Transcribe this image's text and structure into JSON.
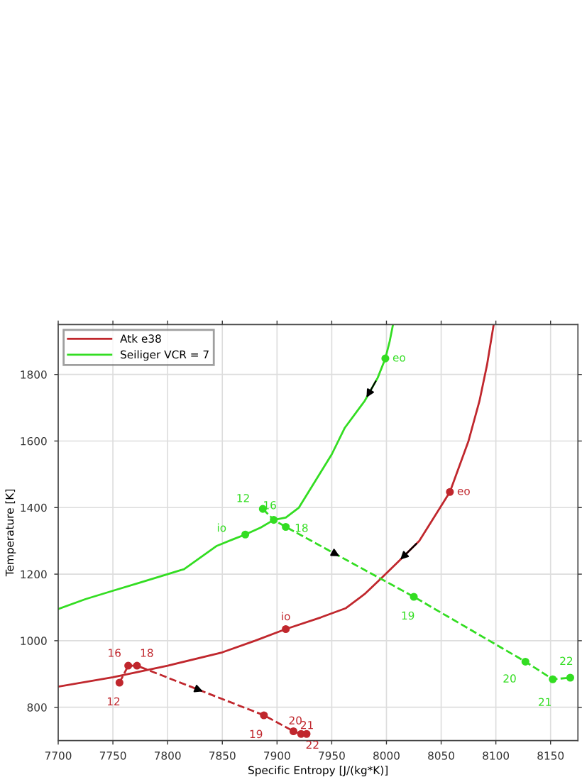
{
  "chart_data": {
    "type": "line",
    "xlabel": "Specific Entropy [J/(kg*K)]",
    "ylabel": "Temperature [K]",
    "xlim": [
      7700,
      8175
    ],
    "ylim": [
      700,
      1950
    ],
    "xticks": [
      7700,
      7750,
      7800,
      7850,
      7900,
      7950,
      8000,
      8050,
      8100,
      8150
    ],
    "yticks": [
      800,
      1000,
      1200,
      1400,
      1600,
      1800
    ],
    "grid": true,
    "legend": "top left",
    "series": [
      {
        "name": "Atk e38",
        "color": "#c0272d",
        "line_style": "solid",
        "marker": "none",
        "x": [
          7700,
          7750,
          7800,
          7850,
          7880,
          7908,
          7940,
          7963,
          7980,
          7995,
          8010,
          8030,
          8058,
          8075,
          8085,
          8092,
          8098
        ],
        "values": [
          862,
          890,
          925,
          965,
          1000,
          1035,
          1070,
          1098,
          1140,
          1187,
          1235,
          1300,
          1447,
          1600,
          1720,
          1830,
          1950
        ]
      },
      {
        "name": "Seiliger VCR = 7",
        "color": "#33dd22",
        "line_style": "solid",
        "marker": "none",
        "x": [
          7700,
          7725,
          7750,
          7775,
          7800,
          7815,
          7830,
          7845,
          7860,
          7871,
          7885,
          7897,
          7908,
          7920,
          7935,
          7950,
          7962,
          7980,
          7992,
          7999,
          8003,
          8006
        ],
        "values": [
          1095,
          1125,
          1150,
          1175,
          1200,
          1215,
          1250,
          1285,
          1305,
          1319,
          1340,
          1363,
          1370,
          1400,
          1480,
          1560,
          1640,
          1720,
          1790,
          1848,
          1900,
          1950
        ]
      },
      {
        "color": "#c0272d",
        "line_style": "dashed",
        "marker": "circle",
        "x": [
          7756,
          7764,
          7772,
          7888,
          7915,
          7922,
          7927
        ],
        "values": [
          874,
          925,
          925,
          776,
          728,
          720,
          720
        ]
      },
      {
        "color": "#33dd22",
        "line_style": "dashed",
        "marker": "circle",
        "x": [
          7887,
          7897,
          7908,
          8025,
          8127,
          8152,
          8168
        ],
        "values": [
          1396,
          1363,
          1342,
          1132,
          937,
          884,
          889
        ]
      },
      {
        "color": "#c0272d",
        "type": "scatter",
        "marker": "circle",
        "x": [
          7908,
          8058
        ],
        "values": [
          1035,
          1447
        ]
      },
      {
        "color": "#33dd22",
        "type": "scatter",
        "marker": "circle",
        "x": [
          7871,
          7999
        ],
        "values": [
          1319,
          1848
        ]
      }
    ],
    "annotations": [
      {
        "text": "12",
        "x": 7756,
        "y": 874
      },
      {
        "text": "16",
        "x": 7764,
        "y": 925
      },
      {
        "text": "18",
        "x": 7772,
        "y": 925
      },
      {
        "text": "19",
        "x": 7888,
        "y": 776
      },
      {
        "text": "20",
        "x": 7915,
        "y": 728
      },
      {
        "text": "21",
        "x": 7922,
        "y": 720
      },
      {
        "text": "22",
        "x": 7927,
        "y": 720
      },
      {
        "text": "io",
        "x": 7908,
        "y": 1035
      },
      {
        "text": "eo",
        "x": 8058,
        "y": 1447
      },
      {
        "text": "12",
        "x": 7887,
        "y": 1396
      },
      {
        "text": "16",
        "x": 7897,
        "y": 1363
      },
      {
        "text": "18",
        "x": 7908,
        "y": 1342
      },
      {
        "text": "19",
        "x": 8025,
        "y": 1132
      },
      {
        "text": "20",
        "x": 8127,
        "y": 937
      },
      {
        "text": "21",
        "x": 8152,
        "y": 884
      },
      {
        "text": "22",
        "x": 8168,
        "y": 889
      },
      {
        "text": "io",
        "x": 7871,
        "y": 1319
      },
      {
        "text": "eo",
        "x": 7999,
        "y": 1848
      }
    ]
  }
}
